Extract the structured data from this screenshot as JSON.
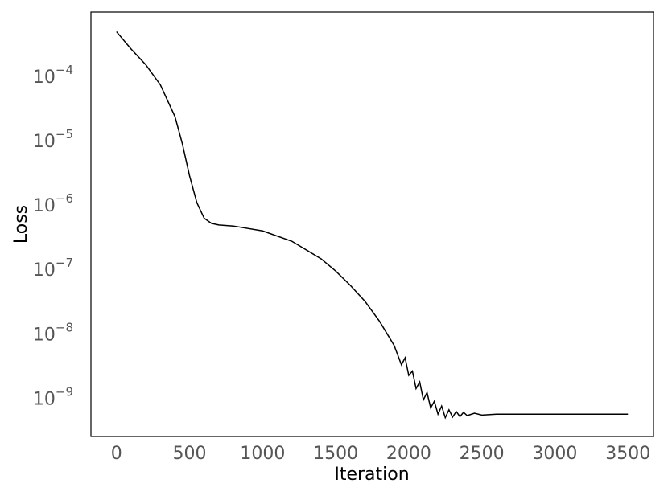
{
  "chart_data": {
    "type": "line",
    "x_label": "Iteration",
    "y_label": "Loss",
    "log_y": true,
    "grid": false,
    "color": "#000000",
    "x": [
      0,
      100,
      200,
      300,
      400,
      450,
      500,
      550,
      600,
      650,
      700,
      800,
      1000,
      1200,
      1400,
      1500,
      1600,
      1700,
      1800,
      1900,
      1950,
      1975,
      2000,
      2025,
      2050,
      2075,
      2100,
      2125,
      2150,
      2175,
      2200,
      2225,
      2250,
      2275,
      2300,
      2325,
      2350,
      2375,
      2400,
      2450,
      2500,
      2600,
      3500
    ],
    "values": [
      0.00052,
      0.00028,
      0.00016,
      7.8e-05,
      2.5e-05,
      9.6e-06,
      3e-06,
      1.15e-06,
      6.6e-07,
      5.5e-07,
      5.2e-07,
      5e-07,
      4.2e-07,
      2.9e-07,
      1.55e-07,
      1e-07,
      6e-08,
      3.4e-08,
      1.66e-08,
      7e-09,
      3.5e-09,
      4.5e-09,
      2.4e-09,
      2.8e-09,
      1.5e-09,
      1.9e-09,
      1e-09,
      1.3e-09,
      7.5e-10,
      9.5e-10,
      6e-10,
      8e-10,
      5.3e-10,
      7e-10,
      5.4e-10,
      6.6e-10,
      5.5e-10,
      6.4e-10,
      5.7e-10,
      6.2e-10,
      5.8e-10,
      6e-10,
      6e-10
    ],
    "xlim": [
      -175,
      3675
    ],
    "xticks": [
      0,
      500,
      1000,
      1500,
      2000,
      2500,
      3000,
      3500
    ],
    "ylim": [
      2.7e-10,
      0.00105
    ],
    "yticks": [
      {
        "value": 0.0001,
        "label": "10",
        "exponent": "−4"
      },
      {
        "value": 1e-05,
        "label": "10",
        "exponent": "−5"
      },
      {
        "value": 1e-06,
        "label": "10",
        "exponent": "−6"
      },
      {
        "value": 1e-07,
        "label": "10",
        "exponent": "−7"
      },
      {
        "value": 1e-08,
        "label": "10",
        "exponent": "−8"
      },
      {
        "value": 1e-09,
        "label": "10",
        "exponent": "−9"
      }
    ]
  }
}
